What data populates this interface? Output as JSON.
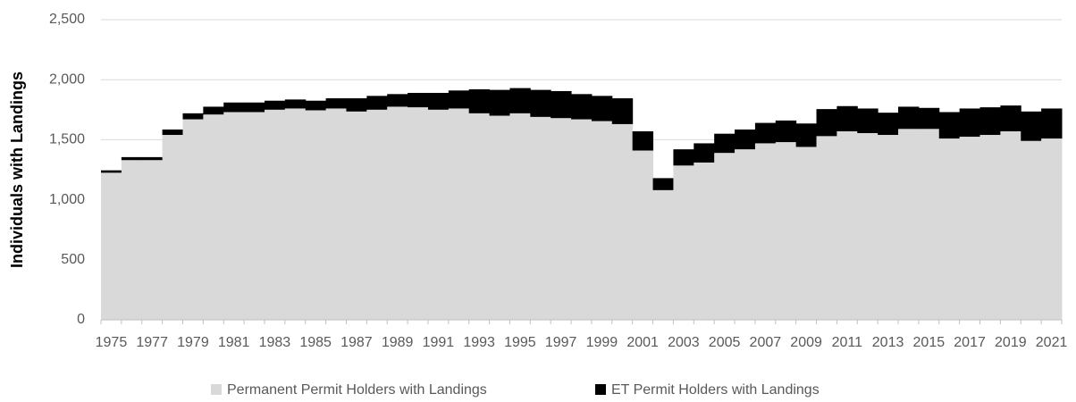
{
  "chart_data": {
    "type": "stacked_bar",
    "y_label": "Individuals with Landings",
    "categories": [
      "1975",
      null,
      "1977",
      null,
      "1979",
      null,
      "1981",
      null,
      "1983",
      null,
      "1985",
      null,
      "1987",
      null,
      "1989",
      null,
      "1991",
      null,
      "1993",
      null,
      "1995",
      null,
      "1997",
      null,
      "1999",
      null,
      "2001",
      null,
      "2003",
      null,
      "2005",
      null,
      "2007",
      null,
      "2009",
      null,
      "2011",
      null,
      "2013",
      null,
      "2015",
      null,
      "2017",
      null,
      "2019",
      null,
      "2021"
    ],
    "series": [
      {
        "name": "Permanent Permit Holders with Landings",
        "color": "#d9d9d9",
        "values": [
          1225,
          1330,
          1330,
          1540,
          1670,
          1710,
          1730,
          1730,
          1750,
          1760,
          1745,
          1760,
          1735,
          1750,
          1775,
          1770,
          1750,
          1760,
          1720,
          1700,
          1720,
          1690,
          1680,
          1670,
          1655,
          1630,
          1410,
          1080,
          1285,
          1310,
          1390,
          1420,
          1470,
          1480,
          1440,
          1530,
          1570,
          1555,
          1540,
          1590,
          1590,
          1510,
          1525,
          1540,
          1570,
          1490,
          1510
        ]
      },
      {
        "name": "ET Permit Holders with Landings",
        "color": "#000000",
        "values": [
          20,
          25,
          25,
          45,
          50,
          65,
          80,
          80,
          75,
          75,
          80,
          85,
          110,
          115,
          105,
          120,
          140,
          150,
          200,
          215,
          210,
          225,
          225,
          210,
          210,
          215,
          160,
          100,
          135,
          160,
          160,
          165,
          170,
          180,
          195,
          225,
          210,
          205,
          185,
          185,
          175,
          220,
          235,
          230,
          215,
          245,
          250
        ]
      }
    ],
    "ylim": [
      0,
      2500
    ],
    "yticks": [
      0,
      500,
      {
        "value": 1000,
        "label": "1,000"
      },
      {
        "value": 1500,
        "label": "1,500"
      },
      {
        "value": 2000,
        "label": "2,000"
      },
      {
        "value": 2500,
        "label": "2,500"
      }
    ],
    "grid": true,
    "legend": "bottom"
  }
}
